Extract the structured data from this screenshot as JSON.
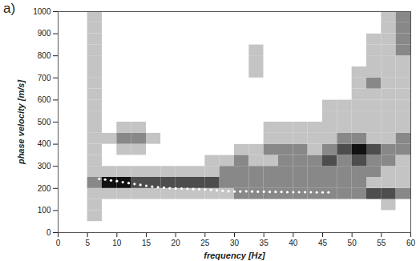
{
  "chart_data": {
    "type": "heatmap",
    "title": "a)",
    "x_label": "frequency [Hz]",
    "y_label": "phase velocity [m/s]",
    "xlim": [
      0,
      60
    ],
    "ylim": [
      0,
      1000
    ],
    "xticks": [
      0,
      5,
      10,
      15,
      20,
      25,
      30,
      35,
      40,
      45,
      50,
      55,
      60
    ],
    "yticks": [
      0,
      100,
      200,
      300,
      400,
      500,
      600,
      700,
      800,
      900,
      1000
    ],
    "grid": false,
    "heatmap": {
      "x_edges": [
        0,
        2.5,
        5,
        7.5,
        10,
        12.5,
        15,
        17.5,
        20,
        22.5,
        25,
        27.5,
        30,
        32.5,
        35,
        37.5,
        40,
        42.5,
        45,
        47.5,
        50,
        52.5,
        55,
        57.5,
        60
      ],
      "y_edges": [
        50,
        100,
        150,
        200,
        250,
        300,
        350,
        400,
        450,
        500,
        550,
        600,
        650,
        700,
        750,
        800,
        850,
        900,
        950,
        1000
      ],
      "color_range": [
        0,
        4
      ],
      "colors": [
        "#ffffff",
        "#111111"
      ],
      "values": [
        [
          0,
          0,
          1,
          0,
          0,
          0,
          0,
          0,
          0,
          0,
          0,
          0,
          0,
          0,
          0,
          0,
          0,
          0,
          0,
          0,
          0,
          0,
          0,
          0
        ],
        [
          0,
          0,
          1,
          0,
          0,
          0,
          0,
          0,
          0,
          0,
          0,
          0,
          0,
          0,
          0,
          0,
          0,
          0,
          0,
          0,
          0,
          0,
          1,
          0
        ],
        [
          0,
          0,
          1,
          1,
          1,
          1,
          1,
          1,
          1,
          1,
          1,
          1,
          2,
          2,
          2,
          2,
          2,
          2,
          2,
          2,
          2,
          3,
          3,
          2
        ],
        [
          0,
          0,
          2,
          4,
          4,
          3,
          3,
          3,
          3,
          3,
          3,
          2,
          2,
          2,
          2,
          2,
          2,
          2,
          2,
          2,
          2,
          1,
          1,
          1
        ],
        [
          0,
          0,
          1,
          1,
          1,
          1,
          1,
          1,
          1,
          1,
          1,
          2,
          2,
          2,
          2,
          2,
          2,
          2,
          2,
          2,
          2,
          2,
          1,
          1
        ],
        [
          0,
          0,
          1,
          0,
          0,
          0,
          0,
          0,
          0,
          0,
          1,
          1,
          2,
          1,
          1,
          2,
          2,
          2,
          3,
          2,
          3,
          2,
          2,
          1
        ],
        [
          0,
          0,
          1,
          0,
          1,
          1,
          0,
          0,
          0,
          0,
          0,
          0,
          1,
          1,
          2,
          2,
          2,
          1,
          2,
          3,
          4,
          3,
          2,
          2
        ],
        [
          0,
          0,
          1,
          1,
          2,
          2,
          1,
          0,
          0,
          0,
          0,
          0,
          0,
          0,
          1,
          1,
          1,
          1,
          1,
          2,
          2,
          1,
          1,
          2
        ],
        [
          0,
          0,
          1,
          0,
          1,
          1,
          0,
          0,
          0,
          0,
          0,
          0,
          0,
          0,
          1,
          1,
          1,
          1,
          1,
          1,
          1,
          1,
          1,
          1
        ],
        [
          0,
          0,
          1,
          0,
          0,
          0,
          0,
          0,
          0,
          0,
          0,
          0,
          0,
          0,
          0,
          0,
          0,
          0,
          1,
          1,
          1,
          1,
          1,
          1
        ],
        [
          0,
          0,
          1,
          0,
          0,
          0,
          0,
          0,
          0,
          0,
          0,
          0,
          0,
          0,
          0,
          0,
          0,
          0,
          1,
          1,
          1,
          1,
          1,
          1
        ],
        [
          0,
          0,
          1,
          0,
          0,
          0,
          0,
          0,
          0,
          0,
          0,
          0,
          0,
          0,
          0,
          0,
          0,
          0,
          0,
          0,
          1,
          1,
          1,
          1
        ],
        [
          0,
          0,
          1,
          0,
          0,
          0,
          0,
          0,
          0,
          0,
          0,
          0,
          0,
          0,
          0,
          0,
          0,
          0,
          0,
          0,
          1,
          2,
          1,
          1
        ],
        [
          0,
          0,
          1,
          0,
          0,
          0,
          0,
          0,
          0,
          0,
          0,
          0,
          0,
          1,
          0,
          0,
          0,
          0,
          0,
          0,
          1,
          1,
          1,
          1
        ],
        [
          0,
          0,
          1,
          0,
          0,
          0,
          0,
          0,
          0,
          0,
          0,
          0,
          0,
          1,
          0,
          0,
          0,
          0,
          0,
          0,
          0,
          1,
          1,
          1
        ],
        [
          0,
          0,
          1,
          0,
          0,
          0,
          0,
          0,
          0,
          0,
          0,
          0,
          0,
          1,
          0,
          0,
          0,
          0,
          0,
          0,
          0,
          1,
          1,
          2
        ],
        [
          0,
          0,
          1,
          0,
          0,
          0,
          0,
          0,
          0,
          0,
          0,
          0,
          0,
          0,
          0,
          0,
          0,
          0,
          0,
          0,
          0,
          1,
          1,
          2
        ],
        [
          0,
          0,
          1,
          0,
          0,
          0,
          0,
          0,
          0,
          0,
          0,
          0,
          0,
          0,
          0,
          0,
          0,
          0,
          0,
          0,
          0,
          0,
          1,
          2
        ],
        [
          0,
          0,
          1,
          0,
          0,
          0,
          0,
          0,
          0,
          0,
          0,
          0,
          0,
          0,
          0,
          0,
          0,
          0,
          0,
          0,
          0,
          0,
          1,
          2
        ]
      ]
    },
    "points": {
      "color": "#ffffff",
      "marker": "dot",
      "x": [
        7,
        8,
        9,
        10,
        11,
        12,
        13,
        14,
        15,
        16,
        17,
        18,
        19,
        20,
        21,
        22,
        23,
        24,
        25,
        26,
        27,
        28,
        29,
        30,
        31,
        32,
        33,
        34,
        35,
        36,
        37,
        38,
        39,
        40,
        41,
        42,
        43,
        44,
        45,
        46
      ],
      "y": [
        243,
        240,
        236,
        233,
        228,
        224,
        220,
        216,
        212,
        208,
        205,
        203,
        201,
        200,
        199,
        198,
        197,
        196,
        195,
        193,
        191,
        189,
        187,
        186,
        186,
        187,
        186,
        185,
        185,
        184,
        184,
        184,
        183,
        183,
        183,
        183,
        183,
        182,
        182,
        182
      ]
    }
  }
}
